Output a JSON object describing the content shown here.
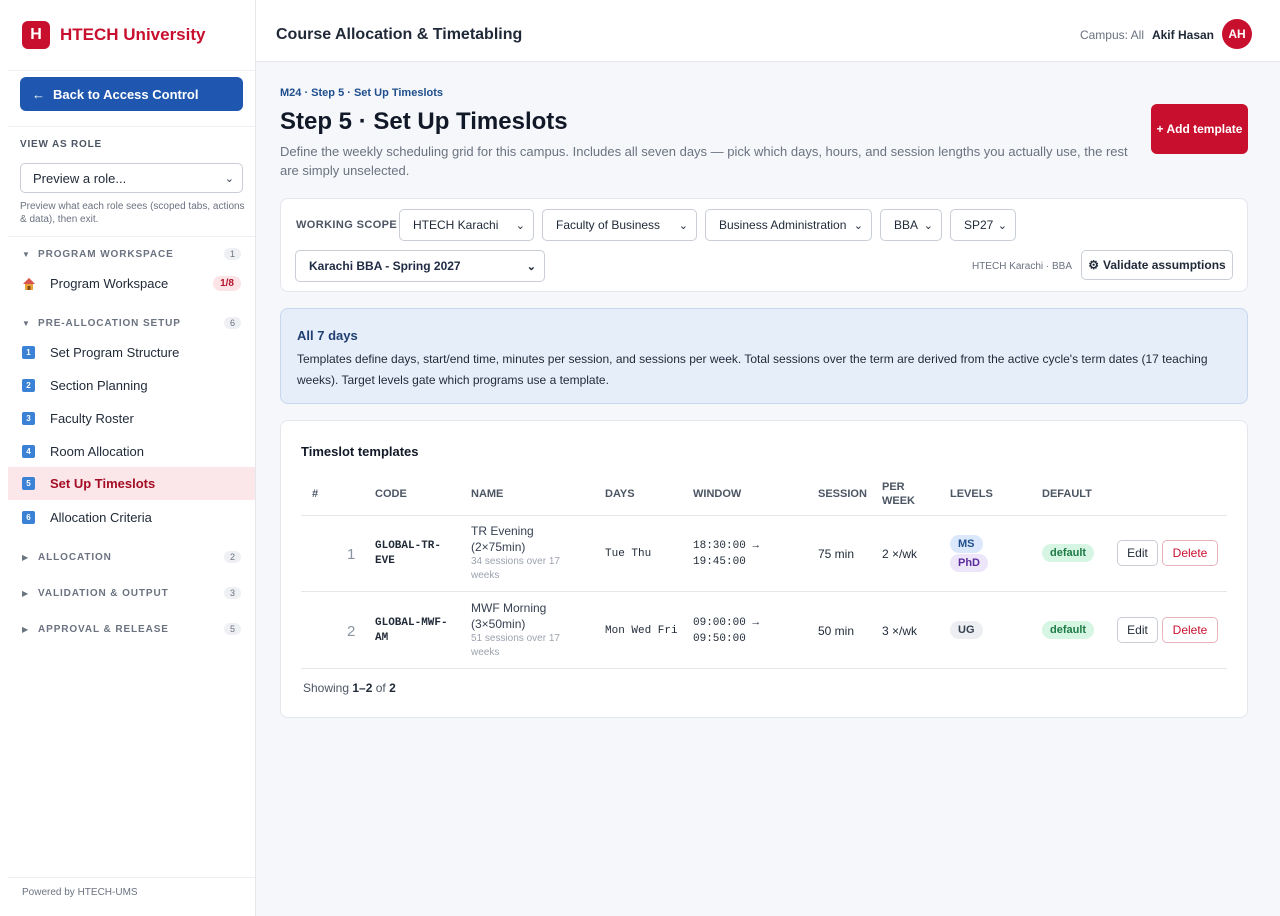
{
  "brand": {
    "logo_letter": "H",
    "name": "HTECH University",
    "color": "#c8102e"
  },
  "sidebar": {
    "back_label": "Back to Access Control",
    "view_as_role_label": "VIEW AS ROLE",
    "role_select_value": "Preview a role...",
    "role_help": "Preview what each role sees (scoped tabs, actions & data), then exit.",
    "groups": [
      {
        "name": "PROGRAM WORKSPACE",
        "count": "1",
        "expanded": true,
        "items": [
          {
            "icon": "house-icon",
            "label": "Program Workspace",
            "badge": "1/8"
          }
        ]
      },
      {
        "name": "PRE-ALLOCATION SETUP",
        "count": "6",
        "expanded": true,
        "items": [
          {
            "icon": "1",
            "label": "Set Program Structure"
          },
          {
            "icon": "2",
            "label": "Section Planning"
          },
          {
            "icon": "3",
            "label": "Faculty Roster"
          },
          {
            "icon": "4",
            "label": "Room Allocation"
          },
          {
            "icon": "5",
            "label": "Set Up Timeslots",
            "active": true
          },
          {
            "icon": "6",
            "label": "Allocation Criteria"
          }
        ]
      },
      {
        "name": "ALLOCATION",
        "count": "2",
        "expanded": false
      },
      {
        "name": "VALIDATION & OUTPUT",
        "count": "3",
        "expanded": false
      },
      {
        "name": "APPROVAL & RELEASE",
        "count": "5",
        "expanded": false
      }
    ],
    "powered_by": "Powered by HTECH-UMS"
  },
  "header": {
    "title": "Course Allocation & Timetabling",
    "campus": "Campus: All",
    "user_name": "Akif Hasan",
    "avatar_initials": "AH"
  },
  "page": {
    "breadcrumb": "M24 · Step 5 · Set Up Timeslots",
    "title": "Step 5 · Set Up Timeslots",
    "description": "Define the weekly scheduling grid for this campus. Includes all seven days — pick which days, hours, and session lengths you actually use, the rest are simply unselected.",
    "add_button": "+ Add template"
  },
  "scope": {
    "label": "WORKING SCOPE",
    "campus": "HTECH Karachi",
    "faculty": "Faculty of Business",
    "department": "Business Administration",
    "program": "BBA",
    "term": "SP27",
    "cycle": "Karachi BBA - Spring 2027",
    "context": "HTECH Karachi · BBA",
    "validate_label": "Validate assumptions"
  },
  "info": {
    "title": "All 7 days",
    "text": "Templates define days, start/end time, minutes per session, and sessions per week. Total sessions over the term are derived from the active cycle's term dates (17 teaching weeks). Target levels gate which programs use a template."
  },
  "table": {
    "title": "Timeslot templates",
    "headers": {
      "num": "#",
      "code": "CODE",
      "name": "NAME",
      "days": "DAYS",
      "window": "WINDOW",
      "session": "SESSION",
      "per_week": "PER WEEK",
      "levels": "LEVELS",
      "default": "DEFAULT"
    },
    "rows": [
      {
        "num": "1",
        "code": "GLOBAL-TR-EVE",
        "name": "TR Evening (2×75min)",
        "sub": "34 sessions over 17 weeks",
        "days": "Tue Thu",
        "window_start": "18:30:00 →",
        "window_end": "19:45:00",
        "session": "75 min",
        "per_week": "2 ×/wk",
        "levels": [
          "MS",
          "PhD"
        ],
        "default": "default",
        "edit": "Edit",
        "delete": "Delete"
      },
      {
        "num": "2",
        "code": "GLOBAL-MWF-AM",
        "name": "MWF Morning (3×50min)",
        "sub": "51 sessions over 17 weeks",
        "days": "Mon Wed Fri",
        "window_start": "09:00:00 →",
        "window_end": "09:50:00",
        "session": "50 min",
        "per_week": "3 ×/wk",
        "levels": [
          "UG"
        ],
        "default": "default",
        "edit": "Edit",
        "delete": "Delete"
      }
    ],
    "showing_prefix": "Showing",
    "showing_range": "1–2",
    "showing_of": "of",
    "showing_total": "2"
  }
}
